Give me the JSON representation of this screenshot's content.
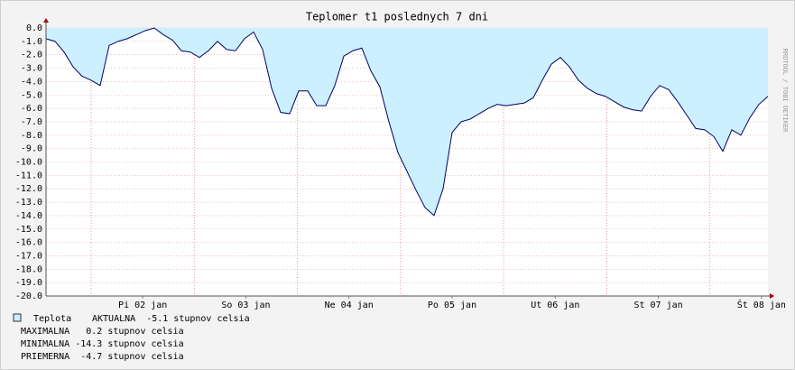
{
  "chart_data": {
    "type": "area",
    "title": "Teplomer t1 poslednych 7 dni",
    "side_label": "RRDTOOL / TOBI OETIKER",
    "x": [
      0,
      2.1,
      4.2,
      6.3,
      8.4,
      10.5,
      12.6,
      14.7,
      16.8,
      18.9,
      21,
      23.1,
      25.2,
      27.3,
      29.4,
      31.5,
      33.6,
      35.7,
      37.8,
      39.9,
      42,
      44.1,
      46.2,
      48.3,
      50.4,
      52.5,
      54.6,
      56.7,
      58.8,
      60.9,
      63,
      65.1,
      67.2,
      69.3,
      71.4,
      73.5,
      75.6,
      77.7,
      79.8,
      81.9,
      84,
      86.1,
      88.2,
      90.3,
      92.4,
      94.5,
      96.6,
      98.7,
      100.8,
      102.9,
      105,
      107.1,
      109.2,
      111.3,
      113.4,
      115.5,
      117.6,
      119.7,
      121.8,
      123.9,
      126,
      128.1,
      130.2,
      132.3,
      134.4,
      136.5,
      138.6,
      140.7,
      142.8,
      144.9,
      147,
      149.1,
      151.2,
      153.3,
      155.4,
      157.5,
      159.6,
      161.7,
      163.8,
      165.9,
      168
    ],
    "series": [
      {
        "name": "Teplota",
        "color": "#ccf0ff",
        "line_color": "#000066",
        "values": [
          -0.8,
          -1.0,
          -1.8,
          -2.9,
          -3.6,
          -3.9,
          -4.3,
          -1.3,
          -1.0,
          -0.8,
          -0.5,
          -0.2,
          0.0,
          -0.5,
          -0.9,
          -1.7,
          -1.8,
          -2.2,
          -1.7,
          -1.0,
          -1.6,
          -1.7,
          -0.8,
          -0.3,
          -1.6,
          -4.5,
          -6.3,
          -6.4,
          -4.7,
          -4.7,
          -5.8,
          -5.8,
          -4.3,
          -2.1,
          -1.7,
          -1.5,
          -3.2,
          -4.4,
          -7.0,
          -9.3,
          -10.7,
          -12.1,
          -13.4,
          -14.0,
          -12.0,
          -7.8,
          -7.0,
          -6.8,
          -6.4,
          -6.0,
          -5.7,
          -5.8,
          -5.7,
          -5.6,
          -5.2,
          -3.9,
          -2.7,
          -2.2,
          -2.9,
          -3.9,
          -4.5,
          -4.9,
          -5.1,
          -5.5,
          -5.9,
          -6.1,
          -6.2,
          -5.1,
          -4.3,
          -4.6,
          -5.5,
          -6.5,
          -7.5,
          -7.6,
          -8.1,
          -9.2,
          -7.6,
          -8.0,
          -6.7,
          -5.7,
          -5.1
        ]
      }
    ],
    "legend_lines": [
      "AKTUALNA  -5.1 stupnov celsia",
      "MAXIMALNA   0.2 stupnov celsia",
      "MINIMALNA -14.3 stupnov celsia",
      "PRIEMERNA  -4.7 stupnov celsia"
    ],
    "xlim": [
      0,
      168
    ],
    "xticks": [
      {
        "value": 22.5,
        "label": "Pi 02 jan"
      },
      {
        "value": 46.5,
        "label": "So 03 jan"
      },
      {
        "value": 70.5,
        "label": "Ne 04 jan"
      },
      {
        "value": 94.5,
        "label": "Po 05 jan"
      },
      {
        "value": 118.5,
        "label": "Ut 06 jan"
      },
      {
        "value": 142.5,
        "label": "St 07 jan"
      },
      {
        "value": 166.5,
        "label": "Št 08 jan"
      }
    ],
    "xgrid": [
      10.5,
      34.5,
      58.5,
      82.5,
      106.5,
      130.5,
      154.5
    ],
    "ylim": [
      -20,
      0
    ],
    "yticks": [
      {
        "value": 0,
        "label": "0.0"
      },
      {
        "value": -1,
        "label": "-1.0"
      },
      {
        "value": -2,
        "label": "-2.0"
      },
      {
        "value": -3,
        "label": "-3.0"
      },
      {
        "value": -4,
        "label": "-4.0"
      },
      {
        "value": -5,
        "label": "-5.0"
      },
      {
        "value": -6,
        "label": "-6.0"
      },
      {
        "value": -7,
        "label": "-7.0"
      },
      {
        "value": -8,
        "label": "-8.0"
      },
      {
        "value": -9,
        "label": "-9.0"
      },
      {
        "value": -10,
        "label": "-10.0"
      },
      {
        "value": -11,
        "label": "-11.0"
      },
      {
        "value": -12,
        "label": "-12.0"
      },
      {
        "value": -13,
        "label": "-13.0"
      },
      {
        "value": -14,
        "label": "-14.0"
      },
      {
        "value": -15,
        "label": "-15.0"
      },
      {
        "value": -16,
        "label": "-16.0"
      },
      {
        "value": -17,
        "label": "-17.0"
      },
      {
        "value": -18,
        "label": "-18.0"
      },
      {
        "value": -19,
        "label": "-19.0"
      },
      {
        "value": -20,
        "label": "-20.0"
      }
    ],
    "grid": true
  }
}
